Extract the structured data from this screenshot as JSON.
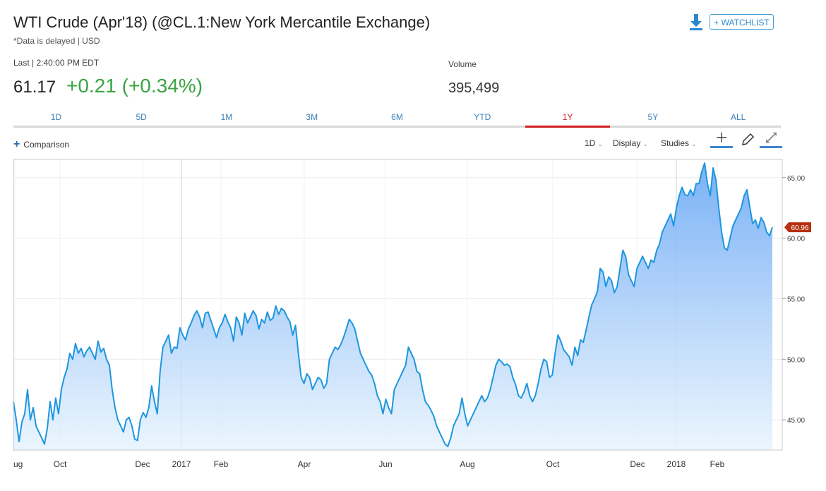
{
  "header": {
    "title": "WTI Crude (Apr'18) (@CL.1:New York Mercantile Exchange)",
    "subtitle": "*Data is delayed | USD",
    "watchlist_label": "+ WATCHLIST"
  },
  "quote": {
    "last_label": "Last | 2:40:00 PM EDT",
    "last_price": "61.17",
    "change": "+0.21 (+0.34%)",
    "volume_label": "Volume",
    "volume_value": "395,499"
  },
  "tabs": [
    {
      "label": "1D"
    },
    {
      "label": "5D"
    },
    {
      "label": "1M"
    },
    {
      "label": "3M"
    },
    {
      "label": "6M"
    },
    {
      "label": "YTD"
    },
    {
      "label": "1Y",
      "active": true
    },
    {
      "label": "5Y"
    },
    {
      "label": "ALL"
    }
  ],
  "toolbar": {
    "comparison_label": "Comparison",
    "interval_label": "1D",
    "display_label": "Display",
    "studies_label": "Studies"
  },
  "colors": {
    "line": "#1e96e0",
    "positive": "#3aa442",
    "active_tab": "#d21e1e",
    "last_tag": "#b8300f"
  },
  "chart_data": {
    "type": "area",
    "x_ticks": [
      "ug",
      "Oct",
      "Dec",
      "2017",
      "Feb",
      "Apr",
      "Jun",
      "Aug",
      "Oct",
      "Dec",
      "2018",
      "Feb"
    ],
    "y_ticks": [
      "45.00",
      "50.00",
      "55.00",
      "60.00",
      "65.00"
    ],
    "ylim": [
      42.5,
      66.5
    ],
    "last_value_label": "60.96",
    "grid": true,
    "series": [
      {
        "values": [
          46.5,
          45.0,
          43.2,
          44.8,
          45.5,
          47.5,
          45.0,
          46.0,
          44.5,
          44.0,
          43.5,
          43.0,
          44.3,
          46.5,
          45.0,
          46.8,
          45.5,
          47.5,
          48.5,
          49.2,
          50.5,
          50.0,
          51.3,
          50.5,
          50.9,
          50.2,
          50.7,
          51.0,
          50.5,
          50.0,
          51.5,
          50.6,
          50.9,
          50.0,
          49.5,
          47.5,
          46.0,
          45.0,
          44.5,
          44.0,
          45.0,
          45.2,
          44.5,
          43.4,
          43.3,
          45.0,
          45.6,
          45.2,
          46.0,
          47.8,
          46.5,
          45.5,
          49.0,
          51.0,
          51.5,
          52.0,
          50.5,
          51.0,
          50.9,
          52.6,
          52.0,
          51.6,
          52.5,
          53.0,
          53.6,
          54.0,
          53.5,
          52.6,
          53.8,
          53.9,
          53.2,
          52.5,
          51.8,
          52.6,
          53.0,
          53.7,
          53.1,
          52.6,
          51.5,
          53.5,
          53.0,
          52.0,
          53.8,
          53.0,
          53.5,
          54.0,
          53.6,
          52.5,
          53.3,
          53.0,
          53.9,
          53.2,
          53.4,
          54.4,
          53.7,
          54.2,
          54.0,
          53.5,
          53.1,
          52.0,
          52.8,
          50.5,
          48.5,
          48.0,
          48.8,
          48.5,
          47.5,
          48.0,
          48.5,
          48.3,
          47.6,
          48.0,
          50.0,
          50.5,
          51.0,
          50.8,
          51.2,
          51.8,
          52.5,
          53.3,
          53.0,
          52.5,
          51.5,
          50.5,
          50.0,
          49.5,
          49.0,
          48.7,
          48.0,
          47.0,
          46.5,
          45.5,
          46.7,
          46.0,
          45.5,
          47.5,
          48.0,
          48.5,
          49.0,
          49.5,
          51.0,
          50.5,
          50.0,
          49.0,
          48.8,
          47.5,
          46.5,
          46.2,
          45.8,
          45.3,
          44.5,
          44.0,
          43.5,
          43.0,
          42.8,
          43.5,
          44.5,
          45.0,
          45.5,
          46.8,
          45.5,
          44.5,
          45.0,
          45.5,
          46.0,
          46.5,
          47.0,
          46.5,
          46.8,
          47.5,
          48.5,
          49.5,
          50.0,
          49.8,
          49.5,
          49.6,
          49.4,
          48.5,
          47.9,
          47.0,
          46.8,
          47.3,
          48.0,
          47.0,
          46.5,
          47.0,
          48.0,
          49.2,
          50.0,
          49.8,
          48.5,
          48.7,
          50.5,
          52.0,
          51.5,
          50.8,
          50.5,
          50.2,
          49.5,
          51.0,
          50.3,
          51.6,
          51.4,
          52.4,
          53.5,
          54.5,
          55.0,
          55.6,
          57.5,
          57.2,
          56.0,
          56.8,
          56.5,
          55.5,
          56.0,
          57.5,
          59.0,
          58.5,
          57.0,
          56.5,
          56.0,
          57.5,
          58.0,
          58.5,
          58.0,
          57.5,
          58.2,
          58.0,
          59.0,
          59.5,
          60.5,
          61.0,
          61.5,
          62.0,
          61.0,
          62.5,
          63.5,
          64.2,
          63.6,
          63.5,
          64.0,
          63.5,
          64.5,
          64.5,
          65.5,
          66.2,
          64.5,
          63.5,
          65.8,
          64.8,
          62.5,
          60.5,
          59.2,
          59.0,
          60.0,
          61.0,
          61.5,
          62.0,
          62.5,
          63.5,
          64.0,
          62.6,
          61.2,
          61.5,
          60.8,
          61.7,
          61.3,
          60.5,
          60.2,
          60.9
        ]
      }
    ]
  }
}
